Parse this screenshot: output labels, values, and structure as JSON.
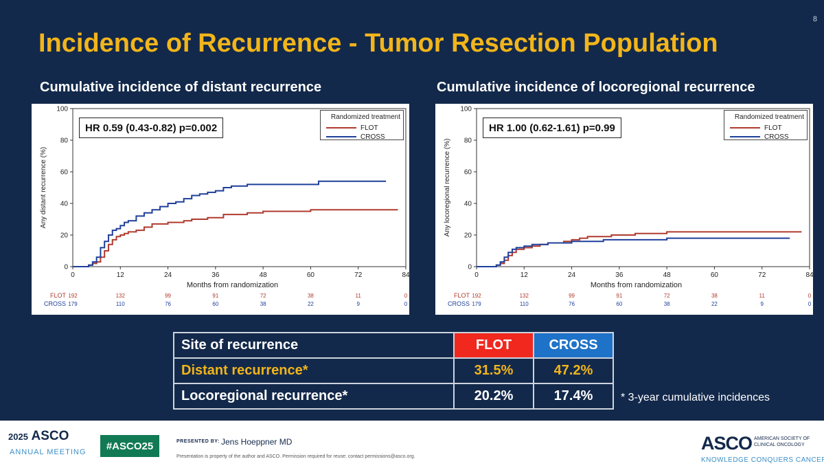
{
  "slide": {
    "number": "8",
    "title": "Incidence of Recurrence - Tumor Resection Population"
  },
  "chart_data": [
    {
      "type": "line",
      "title": "Cumulative incidence of distant recurrence",
      "annotation": "HR 0.59 (0.43-0.82) p=0.002",
      "xlabel": "Months from randomization",
      "ylabel": "Any distant recurrence (%)",
      "xlim": [
        0,
        84
      ],
      "ylim": [
        0,
        100
      ],
      "xticks": [
        0,
        12,
        24,
        36,
        48,
        60,
        72,
        84
      ],
      "yticks": [
        0,
        20,
        40,
        60,
        80,
        100
      ],
      "legend_title": "Randomized treatment",
      "legend_position": "top-right",
      "grid": false,
      "series": [
        {
          "name": "FLOT",
          "color": "#b03a2e",
          "x": [
            0,
            3,
            4,
            5,
            6,
            7,
            8,
            9,
            10,
            11,
            12,
            13,
            14,
            15,
            16,
            18,
            20,
            24,
            28,
            30,
            34,
            36,
            38,
            40,
            44,
            48,
            54,
            60,
            66,
            72,
            78,
            82
          ],
          "y": [
            0,
            0,
            1,
            2,
            3,
            6,
            10,
            14,
            17,
            19,
            20,
            21,
            22,
            22,
            23,
            25,
            27,
            28,
            29,
            30,
            31,
            31,
            33,
            33,
            34,
            35,
            35,
            36,
            36,
            36,
            36,
            36
          ]
        },
        {
          "name": "CROSS",
          "color": "#1f3f9a",
          "x": [
            0,
            3,
            4,
            5,
            6,
            7,
            8,
            9,
            10,
            11,
            12,
            13,
            14,
            16,
            18,
            20,
            22,
            24,
            26,
            28,
            30,
            32,
            34,
            36,
            38,
            40,
            44,
            48,
            54,
            60,
            62,
            66,
            72,
            79
          ],
          "y": [
            0,
            0,
            1,
            3,
            6,
            12,
            16,
            20,
            23,
            24,
            26,
            28,
            29,
            32,
            34,
            36,
            38,
            40,
            41,
            43,
            45,
            46,
            47,
            48,
            50,
            51,
            52,
            52,
            52,
            52,
            54,
            54,
            54,
            54
          ]
        }
      ],
      "risk_table": [
        {
          "name": "FLOT",
          "color": "#b03a2e",
          "values": [
            "192",
            "132",
            "99",
            "91",
            "72",
            "38",
            "11",
            "0"
          ]
        },
        {
          "name": "CROSS",
          "color": "#1f3f9a",
          "values": [
            "179",
            "110",
            "76",
            "60",
            "38",
            "22",
            "9",
            "0"
          ]
        }
      ]
    },
    {
      "type": "line",
      "title": "Cumulative incidence of locoregional recurrence",
      "annotation": "HR 1.00 (0.62-1.61) p=0.99",
      "xlabel": "Months from randomization",
      "ylabel": "Any locoregional recurrence (%)",
      "xlim": [
        0,
        84
      ],
      "ylim": [
        0,
        100
      ],
      "xticks": [
        0,
        12,
        24,
        36,
        48,
        60,
        72,
        84
      ],
      "yticks": [
        0,
        20,
        40,
        60,
        80,
        100
      ],
      "legend_title": "Randomized treatment",
      "legend_position": "top-right",
      "grid": false,
      "series": [
        {
          "name": "FLOT",
          "color": "#b03a2e",
          "x": [
            0,
            4,
            5,
            6,
            7,
            8,
            9,
            10,
            12,
            14,
            16,
            18,
            20,
            22,
            24,
            26,
            28,
            30,
            34,
            36,
            40,
            44,
            48,
            54,
            60,
            66,
            72,
            82
          ],
          "y": [
            0,
            0,
            1,
            2,
            4,
            7,
            9,
            11,
            12,
            13,
            14,
            15,
            15,
            16,
            17,
            18,
            19,
            19,
            20,
            20,
            21,
            21,
            22,
            22,
            22,
            22,
            22,
            22
          ]
        },
        {
          "name": "CROSS",
          "color": "#1f3f9a",
          "x": [
            0,
            4,
            5,
            6,
            7,
            8,
            9,
            10,
            12,
            14,
            16,
            18,
            20,
            24,
            28,
            32,
            36,
            40,
            44,
            48,
            54,
            60,
            66,
            72,
            79
          ],
          "y": [
            0,
            0,
            1,
            3,
            6,
            9,
            11,
            12,
            13,
            14,
            14,
            15,
            15,
            16,
            16,
            17,
            17,
            17,
            17,
            18,
            18,
            18,
            18,
            18,
            18
          ]
        }
      ],
      "risk_table": [
        {
          "name": "FLOT",
          "color": "#b03a2e",
          "values": [
            "192",
            "132",
            "99",
            "91",
            "72",
            "38",
            "11",
            "0"
          ]
        },
        {
          "name": "CROSS",
          "color": "#1f3f9a",
          "values": [
            "179",
            "110",
            "76",
            "60",
            "38",
            "22",
            "9",
            "0"
          ]
        }
      ]
    }
  ],
  "table": {
    "headers": [
      "Site of recurrence",
      "FLOT",
      "CROSS"
    ],
    "rows": [
      {
        "site": "Distant recurrence*",
        "flot": "31.5%",
        "cross": "47.2%"
      },
      {
        "site": "Locoregional recurrence*",
        "flot": "20.2%",
        "cross": "17.4%"
      }
    ],
    "footnote": "* 3-year cumulative incidences",
    "colors": {
      "flot_header": "#f0281e",
      "cross_header": "#1e72c8",
      "highlight": "#f2b51a"
    }
  },
  "footer": {
    "year": "2025",
    "asco": "ASCO",
    "annual_meeting": "ANNUAL MEETING",
    "hashtag": "#ASCO25",
    "presented_by_label": "PRESENTED BY:",
    "presenter": "Jens Hoeppner MD",
    "disclaimer": "Presentation is property of the author and ASCO. Permission required for reuse; contact permissions@asco.org.",
    "logo": "ASCO",
    "society": "AMERICAN SOCIETY OF\nCLINICAL ONCOLOGY",
    "tagline": "KNOWLEDGE CONQUERS CANCER"
  }
}
